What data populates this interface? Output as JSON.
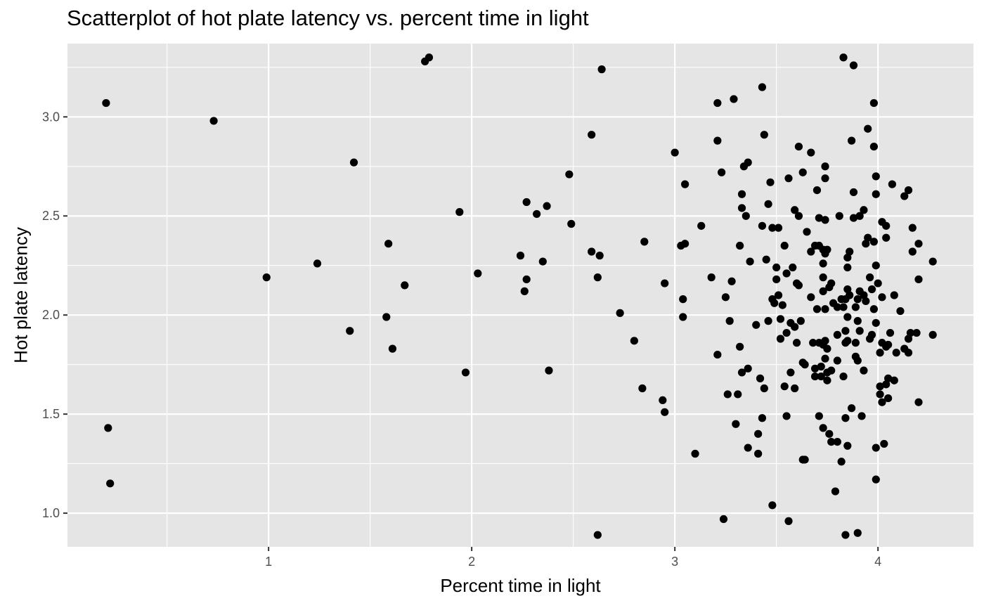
{
  "chart_data": {
    "type": "scatter",
    "title": "Scatterplot of hot plate latency vs. percent time in light",
    "xlabel": "Percent time in light",
    "ylabel": "Hot plate latency",
    "xlim": [
      0.01,
      4.47
    ],
    "ylim": [
      0.83,
      3.37
    ],
    "x_ticks": [
      1,
      2,
      3,
      4
    ],
    "x_tick_labels": [
      "1",
      "2",
      "3",
      "4"
    ],
    "x_minor_ticks": [
      0.5,
      1.5,
      2.5,
      3.5
    ],
    "y_ticks": [
      1.0,
      1.5,
      2.0,
      2.5,
      3.0
    ],
    "y_tick_labels": [
      "1.0",
      "1.5",
      "2.0",
      "2.5",
      "3.0"
    ],
    "y_minor_ticks": [
      1.25,
      1.75,
      2.25,
      2.75,
      3.25
    ],
    "grid": true,
    "colors": {
      "panel": "#e5e5e5",
      "grid": "#ffffff",
      "point": "#000000",
      "tick_text": "#4d4d4d"
    },
    "points": [
      [
        0.2,
        3.07
      ],
      [
        0.21,
        1.43
      ],
      [
        0.22,
        1.15
      ],
      [
        0.73,
        2.98
      ],
      [
        0.99,
        2.19
      ],
      [
        1.24,
        2.26
      ],
      [
        1.4,
        1.92
      ],
      [
        1.42,
        2.77
      ],
      [
        1.58,
        1.99
      ],
      [
        1.59,
        2.36
      ],
      [
        1.61,
        1.83
      ],
      [
        1.67,
        2.15
      ],
      [
        1.77,
        3.28
      ],
      [
        1.79,
        3.3
      ],
      [
        1.94,
        2.52
      ],
      [
        1.97,
        1.71
      ],
      [
        2.03,
        2.21
      ],
      [
        2.24,
        2.3
      ],
      [
        2.26,
        2.12
      ],
      [
        2.27,
        2.18
      ],
      [
        2.27,
        2.57
      ],
      [
        2.32,
        2.51
      ],
      [
        2.35,
        2.27
      ],
      [
        2.37,
        2.55
      ],
      [
        2.38,
        1.72
      ],
      [
        2.48,
        2.71
      ],
      [
        2.49,
        2.46
      ],
      [
        2.59,
        2.91
      ],
      [
        2.59,
        2.32
      ],
      [
        2.62,
        0.89
      ],
      [
        2.62,
        2.19
      ],
      [
        2.63,
        2.3
      ],
      [
        2.64,
        3.24
      ],
      [
        2.73,
        2.01
      ],
      [
        2.8,
        1.87
      ],
      [
        2.84,
        1.63
      ],
      [
        2.85,
        2.37
      ],
      [
        2.94,
        1.57
      ],
      [
        2.95,
        1.51
      ],
      [
        2.95,
        2.16
      ],
      [
        3.0,
        2.82
      ],
      [
        3.03,
        2.35
      ],
      [
        3.04,
        2.08
      ],
      [
        3.04,
        1.99
      ],
      [
        3.05,
        2.36
      ],
      [
        3.05,
        2.66
      ],
      [
        3.1,
        1.3
      ],
      [
        3.13,
        2.45
      ],
      [
        3.18,
        2.19
      ],
      [
        3.21,
        3.07
      ],
      [
        3.21,
        2.88
      ],
      [
        3.21,
        1.8
      ],
      [
        3.23,
        2.72
      ],
      [
        3.24,
        0.97
      ],
      [
        3.25,
        2.09
      ],
      [
        3.26,
        1.6
      ],
      [
        3.27,
        1.97
      ],
      [
        3.28,
        2.17
      ],
      [
        3.29,
        3.09
      ],
      [
        3.3,
        1.45
      ],
      [
        3.31,
        1.6
      ],
      [
        3.32,
        2.35
      ],
      [
        3.32,
        1.84
      ],
      [
        3.33,
        2.61
      ],
      [
        3.33,
        2.54
      ],
      [
        3.33,
        1.71
      ],
      [
        3.34,
        2.75
      ],
      [
        3.35,
        2.5
      ],
      [
        3.36,
        1.73
      ],
      [
        3.36,
        2.77
      ],
      [
        3.36,
        1.33
      ],
      [
        3.37,
        2.27
      ],
      [
        3.4,
        1.95
      ],
      [
        3.41,
        1.4
      ],
      [
        3.41,
        1.3
      ],
      [
        3.42,
        1.68
      ],
      [
        3.43,
        2.45
      ],
      [
        3.43,
        1.48
      ],
      [
        3.43,
        3.15
      ],
      [
        3.44,
        2.91
      ],
      [
        3.44,
        1.63
      ],
      [
        3.45,
        2.28
      ],
      [
        3.46,
        1.97
      ],
      [
        3.46,
        2.56
      ],
      [
        3.47,
        2.67
      ],
      [
        3.48,
        2.44
      ],
      [
        3.48,
        2.08
      ],
      [
        3.48,
        1.04
      ],
      [
        3.49,
        2.06
      ],
      [
        3.5,
        2.24
      ],
      [
        3.5,
        2.18
      ],
      [
        3.51,
        2.44
      ],
      [
        3.51,
        2.1
      ],
      [
        3.52,
        1.98
      ],
      [
        3.52,
        1.88
      ],
      [
        3.53,
        2.05
      ],
      [
        3.54,
        2.35
      ],
      [
        3.54,
        1.64
      ],
      [
        3.55,
        1.91
      ],
      [
        3.55,
        1.49
      ],
      [
        3.55,
        2.21
      ],
      [
        3.56,
        2.69
      ],
      [
        3.56,
        0.96
      ],
      [
        3.57,
        1.96
      ],
      [
        3.57,
        1.71
      ],
      [
        3.58,
        2.24
      ],
      [
        3.59,
        2.53
      ],
      [
        3.59,
        1.94
      ],
      [
        3.59,
        1.63
      ],
      [
        3.6,
        2.16
      ],
      [
        3.6,
        1.86
      ],
      [
        3.61,
        2.85
      ],
      [
        3.61,
        2.15
      ],
      [
        3.61,
        2.5
      ],
      [
        3.62,
        1.97
      ],
      [
        3.63,
        2.72
      ],
      [
        3.63,
        1.27
      ],
      [
        3.63,
        1.76
      ],
      [
        3.64,
        1.75
      ],
      [
        3.64,
        1.27
      ],
      [
        3.65,
        2.42
      ],
      [
        3.67,
        2.82
      ],
      [
        3.67,
        2.09
      ],
      [
        3.67,
        2.32
      ],
      [
        3.68,
        1.86
      ],
      [
        3.69,
        2.35
      ],
      [
        3.69,
        1.69
      ],
      [
        3.69,
        1.73
      ],
      [
        3.7,
        2.03
      ],
      [
        3.7,
        2.63
      ],
      [
        3.71,
        2.49
      ],
      [
        3.71,
        1.86
      ],
      [
        3.71,
        2.35
      ],
      [
        3.71,
        1.49
      ],
      [
        3.72,
        1.69
      ],
      [
        3.72,
        1.74
      ],
      [
        3.73,
        2.33
      ],
      [
        3.73,
        2.19
      ],
      [
        3.73,
        2.26
      ],
      [
        3.73,
        2.12
      ],
      [
        3.73,
        1.85
      ],
      [
        3.73,
        1.43
      ],
      [
        3.74,
        2.75
      ],
      [
        3.74,
        2.69
      ],
      [
        3.74,
        2.48
      ],
      [
        3.74,
        2.31
      ],
      [
        3.74,
        2.03
      ],
      [
        3.74,
        1.87
      ],
      [
        3.74,
        1.78
      ],
      [
        3.75,
        2.33
      ],
      [
        3.75,
        1.83
      ],
      [
        3.75,
        1.71
      ],
      [
        3.75,
        1.67
      ],
      [
        3.76,
        2.14
      ],
      [
        3.76,
        1.4
      ],
      [
        3.77,
        2.16
      ],
      [
        3.77,
        1.72
      ],
      [
        3.77,
        1.36
      ],
      [
        3.78,
        2.06
      ],
      [
        3.79,
        1.11
      ],
      [
        3.8,
        2.04
      ],
      [
        3.8,
        1.77
      ],
      [
        3.8,
        1.9
      ],
      [
        3.8,
        1.36
      ],
      [
        3.81,
        2.5
      ],
      [
        3.82,
        2.08
      ],
      [
        3.82,
        1.26
      ],
      [
        3.83,
        3.3
      ],
      [
        3.83,
        2.04
      ],
      [
        3.83,
        1.69
      ],
      [
        3.84,
        2.08
      ],
      [
        3.84,
        1.92
      ],
      [
        3.84,
        1.86
      ],
      [
        3.84,
        1.48
      ],
      [
        3.84,
        0.89
      ],
      [
        3.85,
        2.29
      ],
      [
        3.85,
        2.24
      ],
      [
        3.85,
        2.13
      ],
      [
        3.85,
        1.99
      ],
      [
        3.85,
        1.87
      ],
      [
        3.85,
        1.34
      ],
      [
        3.86,
        2.32
      ],
      [
        3.86,
        2.1
      ],
      [
        3.87,
        2.88
      ],
      [
        3.87,
        1.53
      ],
      [
        3.88,
        3.26
      ],
      [
        3.88,
        2.62
      ],
      [
        3.88,
        2.49
      ],
      [
        3.89,
        2.04
      ],
      [
        3.89,
        1.86
      ],
      [
        3.89,
        1.79
      ],
      [
        3.9,
        2.08
      ],
      [
        3.9,
        1.97
      ],
      [
        3.9,
        1.77
      ],
      [
        3.9,
        0.9
      ],
      [
        3.91,
        2.12
      ],
      [
        3.91,
        2.5
      ],
      [
        3.91,
        1.92
      ],
      [
        3.92,
        1.49
      ],
      [
        3.93,
        2.53
      ],
      [
        3.93,
        2.1
      ],
      [
        3.93,
        1.72
      ],
      [
        3.94,
        2.07
      ],
      [
        3.94,
        2.36
      ],
      [
        3.95,
        2.94
      ],
      [
        3.95,
        2.39
      ],
      [
        3.96,
        2.19
      ],
      [
        3.96,
        1.88
      ],
      [
        3.97,
        2.13
      ],
      [
        3.97,
        1.9
      ],
      [
        3.98,
        3.07
      ],
      [
        3.98,
        2.85
      ],
      [
        3.98,
        2.37
      ],
      [
        3.98,
        2.03
      ],
      [
        3.99,
        2.7
      ],
      [
        3.99,
        2.61
      ],
      [
        3.99,
        2.25
      ],
      [
        3.99,
        1.96
      ],
      [
        3.99,
        1.33
      ],
      [
        3.99,
        1.17
      ],
      [
        4.0,
        2.16
      ],
      [
        4.01,
        1.81
      ],
      [
        4.01,
        1.64
      ],
      [
        4.01,
        1.6
      ],
      [
        4.02,
        2.47
      ],
      [
        4.02,
        1.86
      ],
      [
        4.02,
        1.56
      ],
      [
        4.02,
        2.09
      ],
      [
        4.03,
        1.35
      ],
      [
        4.04,
        2.39
      ],
      [
        4.04,
        1.84
      ],
      [
        4.04,
        2.45
      ],
      [
        4.04,
        1.65
      ],
      [
        4.05,
        1.58
      ],
      [
        4.05,
        1.85
      ],
      [
        4.05,
        1.68
      ],
      [
        4.06,
        1.91
      ],
      [
        4.07,
        2.66
      ],
      [
        4.08,
        1.67
      ],
      [
        4.08,
        2.1
      ],
      [
        4.09,
        1.81
      ],
      [
        4.11,
        2.02
      ],
      [
        4.13,
        2.6
      ],
      [
        4.13,
        1.83
      ],
      [
        4.15,
        2.63
      ],
      [
        4.15,
        1.88
      ],
      [
        4.15,
        1.81
      ],
      [
        4.16,
        1.91
      ],
      [
        4.17,
        2.32
      ],
      [
        4.17,
        2.44
      ],
      [
        4.19,
        1.91
      ],
      [
        4.2,
        2.18
      ],
      [
        4.2,
        2.36
      ],
      [
        4.2,
        1.56
      ],
      [
        4.27,
        1.9
      ],
      [
        4.27,
        2.27
      ]
    ]
  }
}
